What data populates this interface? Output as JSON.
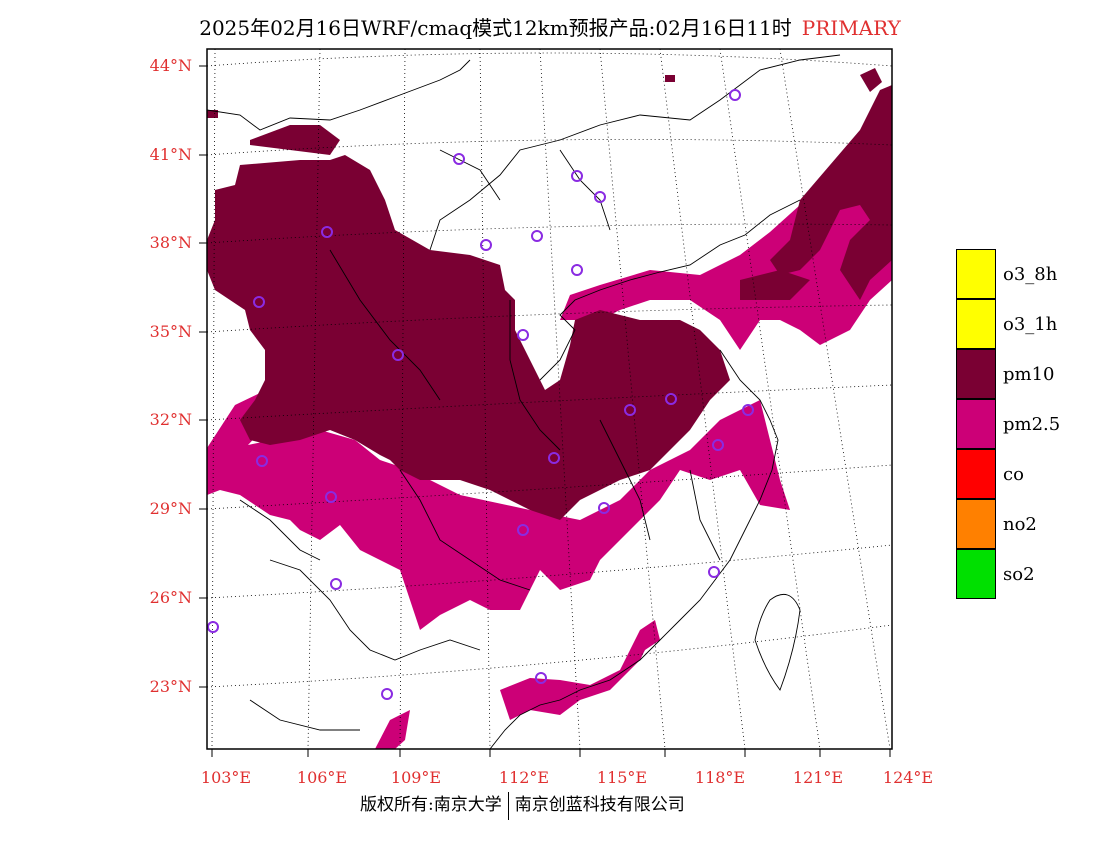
{
  "title": {
    "main": "2025年02月16日WRF/cmaq模式12km预报产品:02月16日11时",
    "tag": "PRIMARY"
  },
  "lat_labels": [
    "44°N",
    "41°N",
    "38°N",
    "35°N",
    "32°N",
    "29°N",
    "26°N",
    "23°N"
  ],
  "lon_labels": [
    "103°E",
    "106°E",
    "109°E",
    "112°E",
    "115°E",
    "118°E",
    "121°E",
    "124°E"
  ],
  "legend": [
    {
      "label": "o3_8h",
      "color": "#ffff00"
    },
    {
      "label": "o3_1h",
      "color": "#ffff00"
    },
    {
      "label": "pm10",
      "color": "#7a0033"
    },
    {
      "label": "pm2.5",
      "color": "#cc0077"
    },
    {
      "label": "co",
      "color": "#ff0000"
    },
    {
      "label": "no2",
      "color": "#ff8000"
    },
    {
      "label": "so2",
      "color": "#00e000"
    }
  ],
  "colors": {
    "pm10": "#7a0033",
    "pm25": "#cc0077",
    "station": "#8a2be2",
    "label": "#e03030"
  },
  "footer": {
    "left": "版权所有:南京大学",
    "right": "南京创蓝科技有限公司"
  }
}
